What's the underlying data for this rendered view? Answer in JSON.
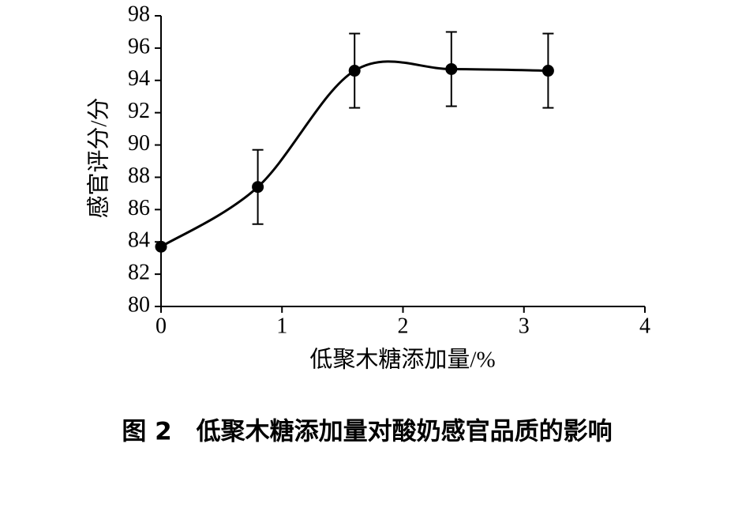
{
  "chart_data": {
    "type": "line",
    "xlabel": "低聚木糖添加量/%",
    "ylabel": "感官评分/分",
    "caption": "图 2　低聚木糖添加量对酸奶感官品质的影响",
    "x": [
      0,
      0.8,
      1.6,
      2.4,
      3.2
    ],
    "values": [
      83.7,
      87.4,
      94.6,
      94.7,
      94.6
    ],
    "errors": [
      null,
      2.3,
      2.3,
      2.3,
      2.3
    ],
    "color": "#000000",
    "smooth": true,
    "xlim": [
      0,
      4
    ],
    "xticks": [
      0,
      1,
      2,
      3,
      4
    ],
    "ylim": [
      80,
      98
    ],
    "yticks": [
      80,
      82,
      84,
      86,
      88,
      90,
      92,
      94,
      96,
      98
    ]
  }
}
